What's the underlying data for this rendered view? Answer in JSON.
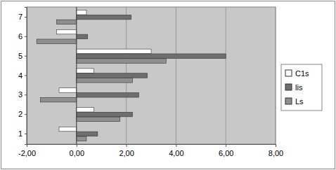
{
  "chart_data": {
    "type": "bar",
    "orientation": "horizontal",
    "grid": true,
    "legend": "right",
    "categories": [
      "1",
      "2",
      "3",
      "4",
      "5",
      "6",
      "7"
    ],
    "series": [
      {
        "name": "C1s",
        "color": "#ffffff",
        "values": [
          -0.7,
          0.7,
          -0.7,
          0.7,
          3.0,
          -0.8,
          0.4
        ]
      },
      {
        "name": "lis",
        "color": "#6e6e6e",
        "values": [
          0.85,
          2.25,
          2.5,
          2.85,
          6.0,
          0.45,
          2.2
        ]
      },
      {
        "name": "Ls",
        "color": "#8f8f8f",
        "values": [
          0.4,
          1.75,
          -1.45,
          2.25,
          3.6,
          -1.6,
          -0.8
        ]
      }
    ],
    "xlim": [
      -2,
      8
    ],
    "xticks": [
      {
        "value": -2,
        "label": "-2,00"
      },
      {
        "value": 0,
        "label": "0,00"
      },
      {
        "value": 2,
        "label": "2,00"
      },
      {
        "value": 4,
        "label": "4,00"
      },
      {
        "value": 6,
        "label": "6,00"
      },
      {
        "value": 8,
        "label": "8,00"
      }
    ]
  }
}
